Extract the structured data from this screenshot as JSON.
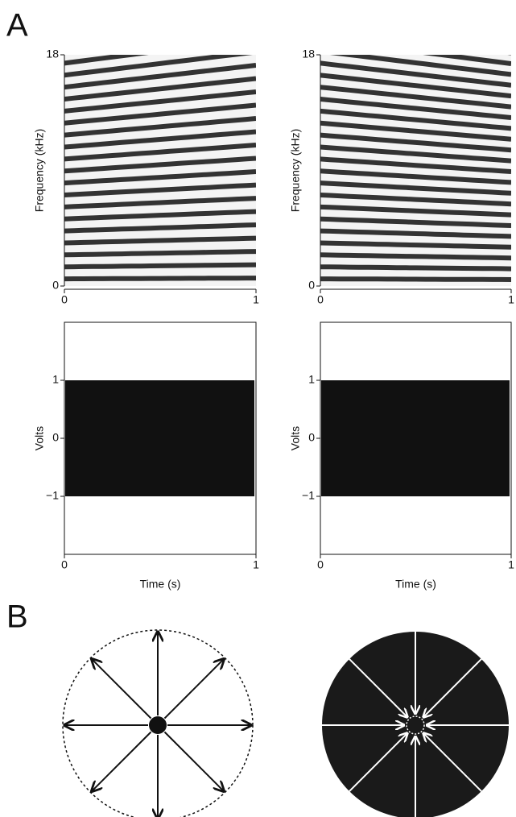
{
  "panel_a": {
    "label": "A",
    "spectrograms": [
      {
        "ylabel": "Frequency (kHz)",
        "ylim": [
          0,
          18
        ],
        "yticks": [
          0,
          18
        ],
        "xlim": [
          0,
          1
        ],
        "xticks": [
          0,
          1
        ]
      },
      {
        "ylabel": "Frequency (kHz)",
        "ylim": [
          0,
          18
        ],
        "yticks": [
          0,
          18
        ],
        "xlim": [
          0,
          1
        ],
        "xticks": [
          0,
          1
        ]
      }
    ],
    "waveforms": [
      {
        "ylabel": "Volts",
        "xlabel": "Time (s)",
        "amplitude": 1,
        "ylim": [
          -2,
          2
        ],
        "yticks": [
          {
            "value": -1,
            "label": "−1"
          },
          0,
          1
        ],
        "xlim": [
          0,
          1
        ],
        "xticks": [
          0,
          1
        ]
      },
      {
        "ylabel": "Volts",
        "xlabel": "Time (s)",
        "amplitude": 1,
        "ylim": [
          -2,
          2
        ],
        "yticks": [
          {
            "value": -1,
            "label": "−1"
          },
          0,
          1
        ],
        "xlim": [
          0,
          1
        ],
        "xticks": [
          0,
          1
        ]
      }
    ]
  },
  "panel_b": {
    "label": "B"
  }
}
